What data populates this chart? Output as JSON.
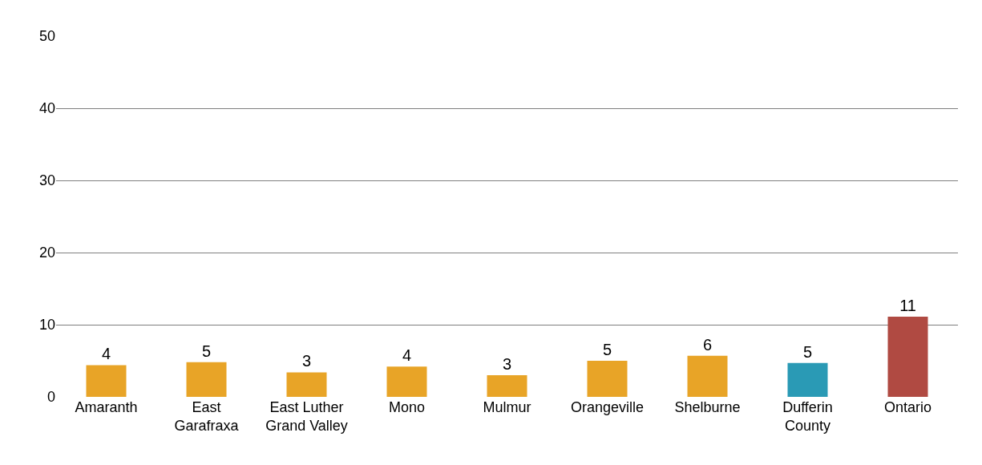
{
  "chart_data": {
    "type": "bar",
    "categories": [
      "Amaranth",
      "East\nGarafraxa",
      "East Luther\nGrand Valley",
      "Mono",
      "Mulmur",
      "Orangeville",
      "Shelburne",
      "Dufferin\nCounty",
      "Ontario"
    ],
    "values": [
      4.4,
      4.8,
      3.4,
      4.2,
      3.0,
      5.0,
      5.7,
      4.7,
      11.1
    ],
    "value_labels": [
      "4",
      "5",
      "3",
      "4",
      "3",
      "5",
      "6",
      "5",
      "11"
    ],
    "colors": [
      "#e8a427",
      "#e8a427",
      "#e8a427",
      "#e8a427",
      "#e8a427",
      "#e8a427",
      "#e8a427",
      "#2a9ab5",
      "#b04a42"
    ],
    "ylim": [
      0,
      50
    ],
    "yticks": [
      0,
      10,
      20,
      30,
      40,
      50
    ],
    "grid": "y",
    "legend": false
  }
}
